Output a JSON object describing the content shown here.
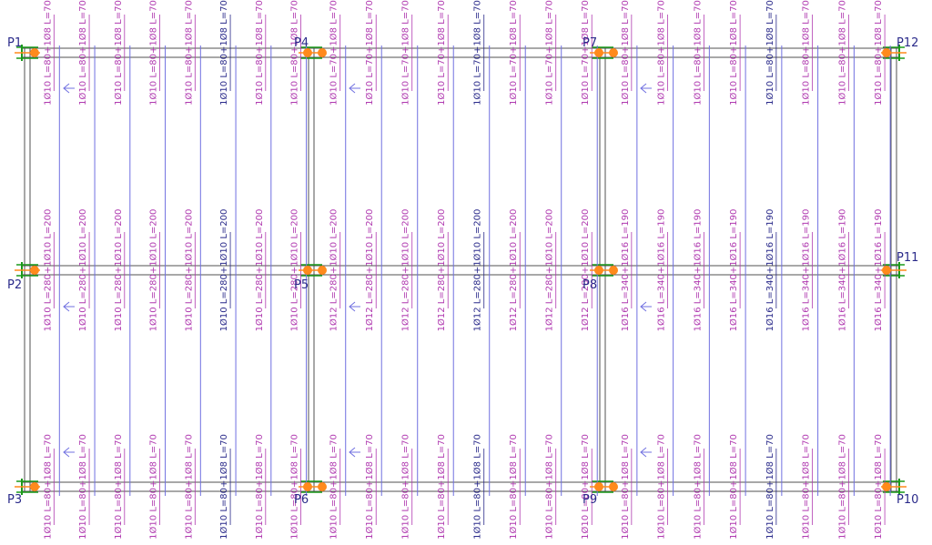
{
  "colors": {
    "background": "#ffffff",
    "beam": "#505050",
    "rebar_label": "#b03ab0",
    "rebar_label_selected": "#2a2a8a",
    "rebar_line": "#7070e0",
    "pier_label": "#2a2a8a",
    "support_node": "#ff8a1c",
    "anchor_tick": "#1a9a1a"
  },
  "piers": [
    {
      "id": "P1",
      "label": "P1"
    },
    {
      "id": "P2",
      "label": "P2"
    },
    {
      "id": "P3",
      "label": "P3"
    },
    {
      "id": "P4",
      "label": "P4"
    },
    {
      "id": "P5",
      "label": "P5"
    },
    {
      "id": "P6",
      "label": "P6"
    },
    {
      "id": "P7",
      "label": "P7"
    },
    {
      "id": "P8",
      "label": "P8"
    },
    {
      "id": "P9",
      "label": "P9"
    },
    {
      "id": "P10",
      "label": "P10"
    },
    {
      "id": "P11",
      "label": "P11"
    },
    {
      "id": "P12",
      "label": "P12"
    }
  ],
  "spans": [
    {
      "name": "left",
      "top_label": "1Ø10 L=80+1Ø8 L=70",
      "mid_label": "1Ø10 L=280+1Ø10 L=200",
      "bot_label": "1Ø10 L=80+1Ø8 L=70",
      "bar_count": 8,
      "selected_index": 5
    },
    {
      "name": "middle",
      "top_label": "1Ø10 L=70+1Ø8 L=70",
      "mid_label": "1Ø12 L=280+1Ø10 L=200",
      "bot_label": "1Ø10 L=80+1Ø8 L=70",
      "bar_count": 8,
      "selected_index": 4
    },
    {
      "name": "right",
      "top_label": "1Ø10 L=80+1Ø8 L=70",
      "mid_label": "1Ø16 L=340+1Ø16 L=190",
      "bot_label": "1Ø10 L=80+1Ø8 L=70",
      "bar_count": 8,
      "selected_index": 4
    }
  ]
}
